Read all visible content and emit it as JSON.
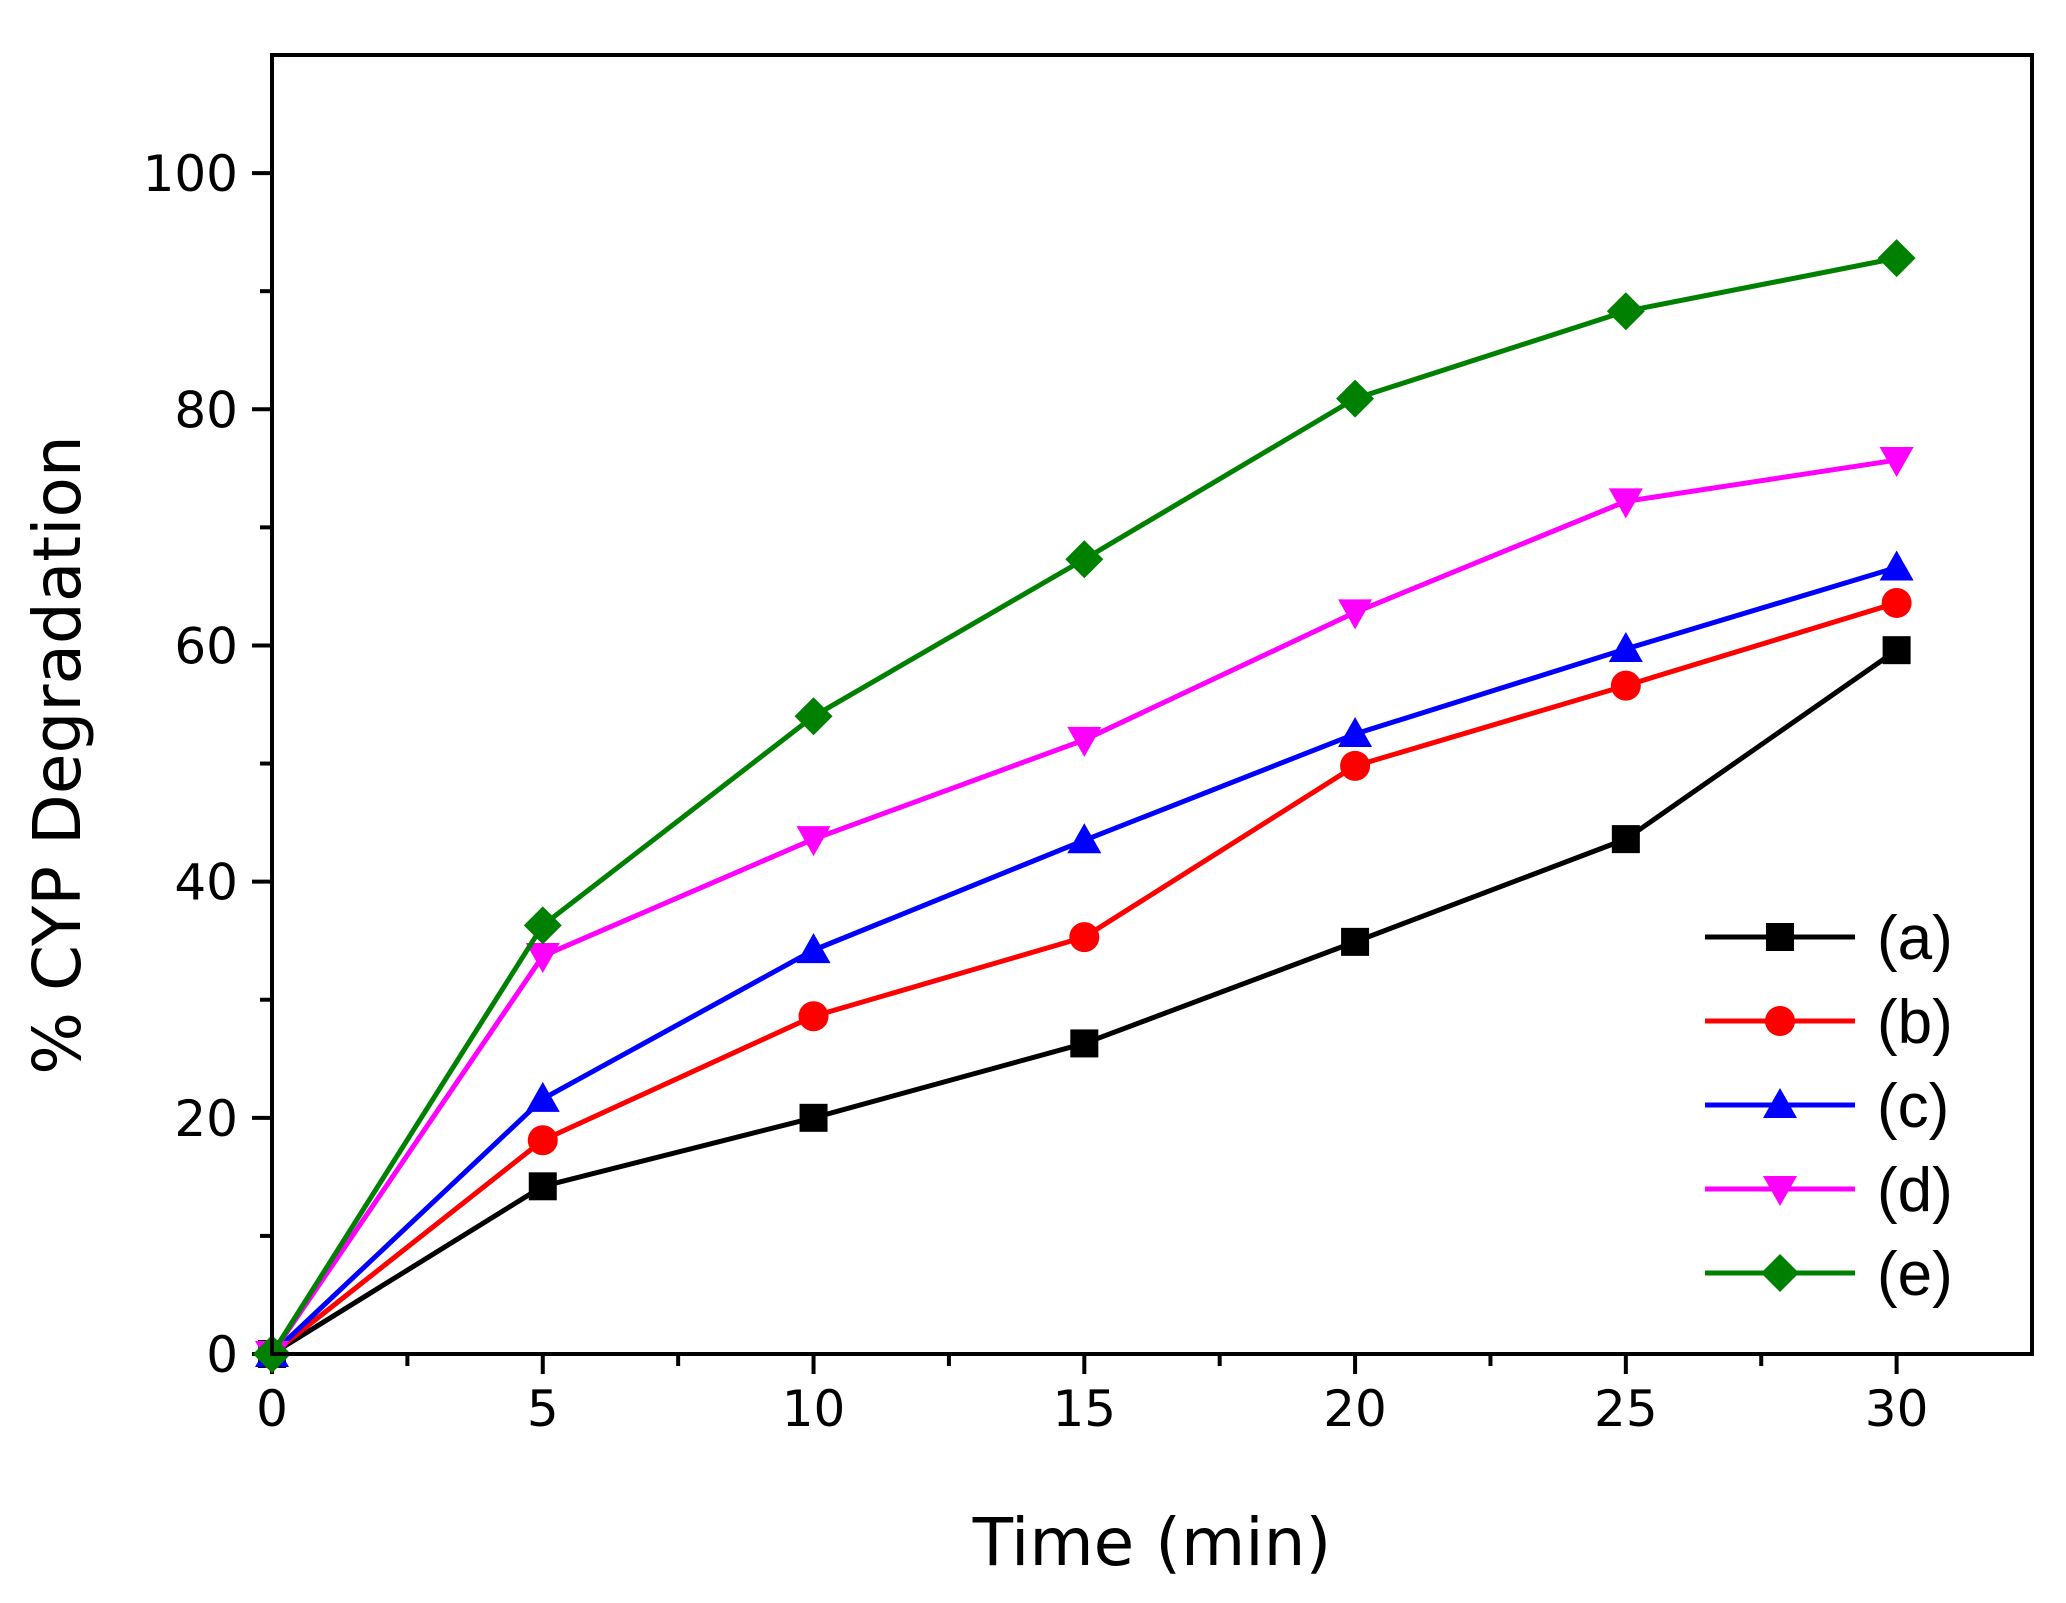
{
  "chart_data": {
    "type": "line",
    "title": "",
    "xlabel": "Time (min)",
    "ylabel": "% CYP Degradation",
    "xlim": [
      0,
      32.5
    ],
    "ylim": [
      0,
      110
    ],
    "x": [
      0,
      5,
      10,
      15,
      20,
      25,
      30
    ],
    "x_ticks": [
      "0",
      "5",
      "10",
      "15",
      "20",
      "25",
      "30"
    ],
    "y_ticks": [
      "0",
      "20",
      "40",
      "60",
      "80",
      "100"
    ],
    "grid": false,
    "legend_position": "bottom-right",
    "series": [
      {
        "name": "(a)",
        "color": "#000000",
        "marker": "square",
        "values": [
          0,
          14.2,
          20.0,
          26.3,
          34.9,
          43.6,
          59.6
        ]
      },
      {
        "name": "(b)",
        "color": "#ff0000",
        "marker": "circle",
        "values": [
          0,
          18.1,
          28.6,
          35.3,
          49.8,
          56.6,
          63.6
        ]
      },
      {
        "name": "(c)",
        "color": "#0000ff",
        "marker": "triangle-up",
        "values": [
          0,
          21.6,
          34.2,
          43.5,
          52.5,
          59.7,
          66.6
        ]
      },
      {
        "name": "(d)",
        "color": "#ff00ff",
        "marker": "triangle-down",
        "values": [
          0,
          33.7,
          43.6,
          52.0,
          62.8,
          72.2,
          75.7
        ]
      },
      {
        "name": "(e)",
        "color": "#008000",
        "marker": "diamond",
        "values": [
          0,
          36.3,
          54.0,
          67.3,
          80.9,
          88.3,
          92.8
        ]
      }
    ]
  }
}
